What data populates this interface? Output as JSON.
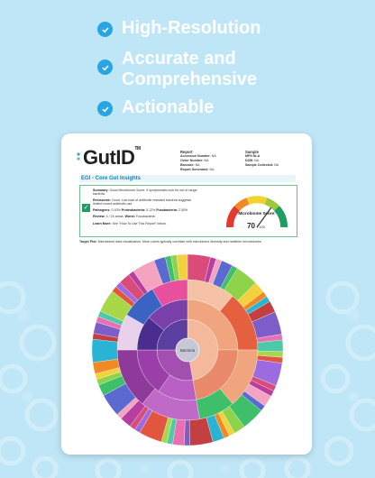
{
  "features": [
    {
      "label": "High-Resolution",
      "icon": "check-circle-icon"
    },
    {
      "label": "Accurate and Comprehensive",
      "line1": "Accurate and",
      "line2": "Comprehensive",
      "icon": "check-circle-icon"
    },
    {
      "label": "Actionable",
      "icon": "check-circle-icon"
    }
  ],
  "report": {
    "logo": "GutID",
    "logo_tm": "TM",
    "report_heading": "Report",
    "report_fields": [
      {
        "key": "Accession Number:",
        "value": "NA"
      },
      {
        "key": "Order Number:",
        "value": "NA"
      },
      {
        "key": "Barcode:",
        "value": "NA"
      },
      {
        "key": "Report Generated:",
        "value": "NA"
      }
    ],
    "sample_heading": "Sample",
    "sample_fields": [
      {
        "key": "MFN NLA",
        "value": ""
      },
      {
        "key": "DOB:",
        "value": "NA"
      },
      {
        "key": "Sample Collected:",
        "value": "NA"
      }
    ],
    "section_title": "EGI - Core Gut Insights",
    "summary_label": "Summary:",
    "summary_text": "Good Microbiome Score. If symptomatic look for out of range bacteria.",
    "resiszome_label": "Resiszome:",
    "resiszome_text": "Good. Low load of antibiotic resistant bacteria suggests limited recent antibiotic use.",
    "pathogens_label": "Pathogens:",
    "pathogens_text": "0.43%",
    "proteo_label": "Proteobacteria:",
    "proteo_text": "5.12%",
    "fuso_label": "Fusobacteria:",
    "fuso_text": "2.50%",
    "review_label": "Review:",
    "review_text": "4 / 24 areas.",
    "worst_label": "Worst:",
    "worst_text": "Fusobacteria",
    "learn_label": "Learn More:",
    "learn_text": "See \"How To Use This Report\" below.",
    "score_label": "Microbiome Score:",
    "score_value": "70",
    "score_max": "/ 100",
    "score_fraction": 0.7,
    "target_label": "Target Plot:",
    "target_text": "Microbiome data visualization. More colors typically correlate with microbiome diversity and healthier microbiomes.",
    "center_label": "Bacteria"
  }
}
